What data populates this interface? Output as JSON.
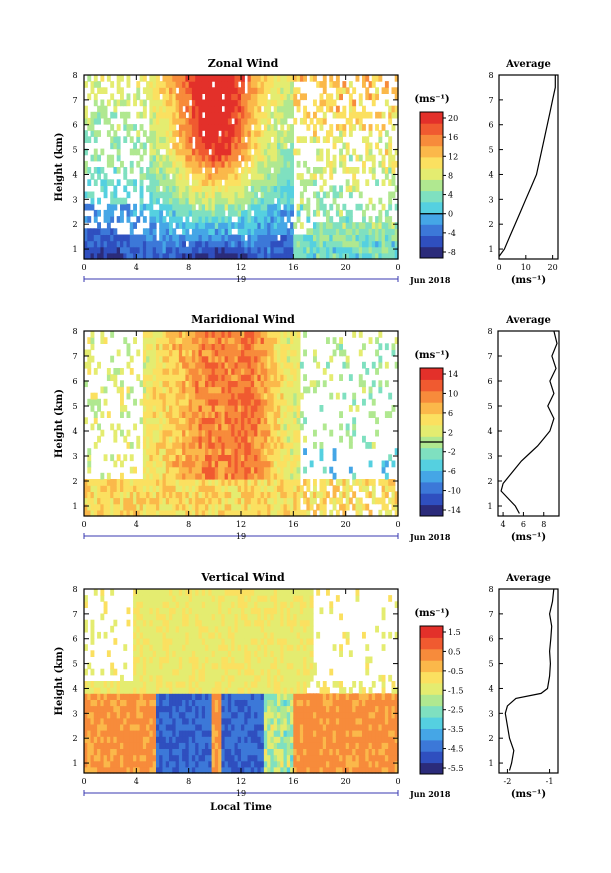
{
  "chart_data": [
    {
      "type": "heatmap",
      "title": "Zonal Wind",
      "ylabel": "Height (km)",
      "x_ticks": [
        "0",
        "4",
        "8",
        "12",
        "16",
        "20",
        "0"
      ],
      "y_ticks": [
        "1",
        "2",
        "3",
        "4",
        "5",
        "6",
        "7",
        "8"
      ],
      "xlim": [
        0,
        24
      ],
      "ylim": [
        0.6,
        8.0
      ],
      "date_label": "19",
      "month_label": "Jun 2018",
      "unit_label": "(ms⁻¹)",
      "colorbar_ticks": [
        "20",
        "16",
        "12",
        "8",
        "4",
        "0",
        "-4",
        "-8"
      ],
      "colorbar_range": [
        -10,
        22
      ],
      "colorbar_zero_line": 0,
      "profile": {
        "title": "Average",
        "x_ticks": [
          "0",
          "10",
          "20"
        ],
        "xlim": [
          0,
          22
        ],
        "unit_label": "(ms⁻¹)",
        "heights": [
          0.7,
          1,
          1.5,
          2,
          2.5,
          3,
          3.5,
          4,
          4.5,
          5,
          5.5,
          6,
          6.5,
          7,
          7.5,
          8
        ],
        "values": [
          0,
          2,
          4,
          6,
          8,
          10,
          12,
          14,
          15,
          16,
          17,
          18,
          19,
          20,
          21,
          21
        ]
      }
    },
    {
      "type": "heatmap",
      "title": "Maridional Wind",
      "ylabel": "Height (km)",
      "x_ticks": [
        "0",
        "4",
        "8",
        "12",
        "16",
        "20",
        "0"
      ],
      "y_ticks": [
        "1",
        "2",
        "3",
        "4",
        "5",
        "6",
        "7",
        "8"
      ],
      "xlim": [
        0,
        24
      ],
      "ylim": [
        0.6,
        8.0
      ],
      "date_label": "19",
      "month_label": "Jun 2018",
      "unit_label": "(ms⁻¹)",
      "colorbar_ticks": [
        "14",
        "10",
        "6",
        "2",
        "-2",
        "-6",
        "-10",
        "-14"
      ],
      "colorbar_range": [
        -16,
        16
      ],
      "colorbar_zero_line": 0,
      "profile": {
        "title": "Average",
        "x_ticks": [
          "4",
          "6",
          "8"
        ],
        "xlim": [
          3.5,
          9.5
        ],
        "unit_label": "(ms⁻¹)",
        "heights": [
          0.7,
          1,
          1.3,
          1.6,
          1.9,
          2.2,
          2.5,
          2.8,
          3.1,
          3.4,
          3.7,
          4,
          4.5,
          5,
          5.5,
          6,
          6.5,
          7,
          7.5,
          8
        ],
        "values": [
          5.6,
          5.2,
          4.5,
          3.8,
          4.0,
          4.6,
          5.2,
          5.8,
          6.6,
          7.4,
          8.0,
          8.6,
          9.0,
          8.4,
          9.0,
          8.6,
          9.2,
          8.8,
          9.3,
          9.0
        ]
      }
    },
    {
      "type": "heatmap",
      "title": "Vertical Wind",
      "ylabel": "Height (km)",
      "xlabel": "Local Time",
      "x_ticks": [
        "0",
        "4",
        "8",
        "12",
        "16",
        "20",
        "0"
      ],
      "y_ticks": [
        "1",
        "2",
        "3",
        "4",
        "5",
        "6",
        "7",
        "8"
      ],
      "xlim": [
        0,
        24
      ],
      "ylim": [
        0.6,
        8.0
      ],
      "date_label": "19",
      "month_label": "Jun 2018",
      "unit_label": "(ms⁻¹)",
      "colorbar_ticks": [
        "1.5",
        "0.5",
        "-0.5",
        "-1.5",
        "-2.5",
        "-3.5",
        "-4.5",
        "-5.5"
      ],
      "colorbar_range": [
        -6,
        2
      ],
      "colorbar_zero_line": null,
      "profile": {
        "title": "Average",
        "x_ticks": [
          "-2",
          "-1"
        ],
        "xlim": [
          -2.2,
          -0.8
        ],
        "unit_label": "(ms⁻¹)",
        "heights": [
          0.7,
          1,
          1.5,
          2,
          2.5,
          3,
          3.3,
          3.6,
          3.8,
          4,
          4.5,
          5,
          5.5,
          6,
          6.5,
          7,
          7.5,
          8
        ],
        "values": [
          -1.95,
          -1.9,
          -1.85,
          -1.95,
          -2.0,
          -2.05,
          -2.0,
          -1.8,
          -1.2,
          -1.05,
          -1.0,
          -0.98,
          -1.0,
          -0.97,
          -0.95,
          -1.0,
          -0.93,
          -0.9
        ]
      }
    }
  ]
}
